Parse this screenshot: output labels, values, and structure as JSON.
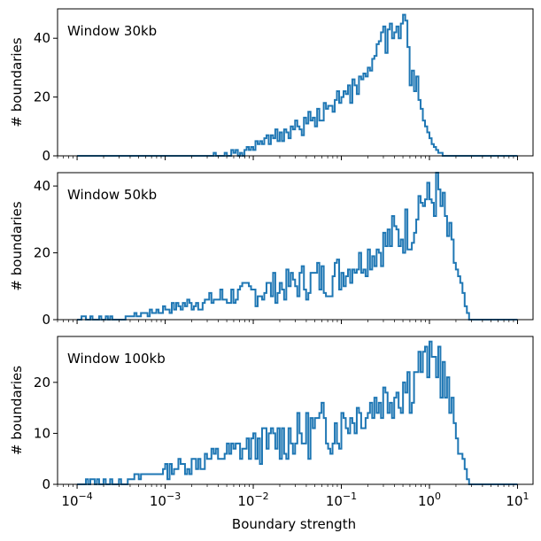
{
  "chart_data": {
    "type": "histogram",
    "xscale": "log",
    "xlim": [
      6e-05,
      15
    ],
    "shared_x": true,
    "xlabel": "Boundary strength",
    "ylabel": "# boundaries",
    "x_ticks": [
      {
        "value": 0.0001,
        "base": "10",
        "exp": "−4"
      },
      {
        "value": 0.001,
        "base": "10",
        "exp": "−3"
      },
      {
        "value": 0.01,
        "base": "10",
        "exp": "−2"
      },
      {
        "value": 0.1,
        "base": "10",
        "exp": "−1"
      },
      {
        "value": 1,
        "base": "10",
        "exp": "0"
      },
      {
        "value": 10,
        "base": "10",
        "exp": "1"
      }
    ],
    "line_color": "#1f77b4",
    "bin_edges_log10": [
      -4,
      1
    ],
    "bin_count": 200,
    "panels": [
      {
        "annotation": "Window 30kb",
        "ylim": [
          0,
          50
        ],
        "yticks": [
          0,
          20,
          40
        ],
        "series": [
          {
            "counts": [
              0,
              0,
              0,
              0,
              0,
              0,
              0,
              0,
              0,
              0,
              0,
              0,
              0,
              0,
              0,
              0,
              0,
              0,
              0,
              0,
              0,
              0,
              0,
              0,
              0,
              0,
              0,
              0,
              0,
              0,
              0,
              0,
              0,
              0,
              0,
              0,
              0,
              0,
              0,
              0,
              0,
              0,
              0,
              0,
              0,
              0,
              0,
              0,
              0,
              0,
              0,
              0,
              0,
              0,
              0,
              0,
              0,
              0,
              0,
              0,
              0,
              0,
              1,
              0,
              0,
              0,
              0,
              1,
              0,
              0,
              2,
              1,
              2,
              0,
              1,
              0,
              2,
              3,
              2,
              3,
              2,
              5,
              4,
              5,
              4,
              6,
              7,
              4,
              7,
              6,
              9,
              5,
              8,
              5,
              9,
              8,
              6,
              10,
              9,
              12,
              10,
              9,
              7,
              13,
              11,
              15,
              12,
              13,
              10,
              16,
              12,
              12,
              18,
              16,
              17,
              17,
              15,
              19,
              22,
              18,
              20,
              22,
              21,
              24,
              18,
              26,
              24,
              21,
              27,
              26,
              28,
              27,
              30,
              29,
              33,
              34,
              38,
              39,
              42,
              44,
              35,
              43,
              45,
              40,
              42,
              44,
              40,
              45,
              48,
              46,
              37,
              24,
              29,
              22,
              27,
              19,
              16,
              12,
              10,
              8,
              6,
              4,
              3,
              2,
              1,
              1,
              0,
              0,
              0,
              0,
              0,
              0,
              0,
              0,
              0,
              0,
              0,
              0,
              0,
              0,
              0,
              0,
              0,
              0,
              0,
              0,
              0,
              0,
              0,
              0,
              0,
              0,
              0,
              0,
              0,
              0,
              0,
              0,
              0,
              0
            ],
            "counts_note": "",
            "low_tail": [
              0,
              0,
              0,
              0,
              0,
              0,
              0,
              0,
              0,
              1,
              0,
              0,
              0,
              0,
              0,
              0,
              1,
              0,
              0,
              0,
              0,
              1,
              0,
              1,
              0,
              0,
              0,
              1,
              0,
              1,
              0,
              1,
              0,
              0,
              0,
              1,
              0,
              0,
              1,
              0,
              0,
              1,
              1,
              0,
              1,
              0,
              1,
              1,
              0,
              1,
              0,
              1,
              0,
              1,
              1,
              0,
              1,
              2,
              1,
              2
            ]
          }
        ]
      },
      {
        "annotation": "Window 50kb",
        "ylim": [
          0,
          44
        ],
        "yticks": [
          0,
          20,
          40
        ],
        "series": [
          {
            "counts": [],
            "counts_note": "",
            "low_tail": []
          }
        ]
      },
      {
        "annotation": "Window 100kb",
        "ylim": [
          0,
          29
        ],
        "yticks": [
          0,
          10,
          20
        ],
        "series": [
          {
            "counts": [],
            "counts_note": "",
            "low_tail": []
          }
        ]
      }
    ]
  }
}
